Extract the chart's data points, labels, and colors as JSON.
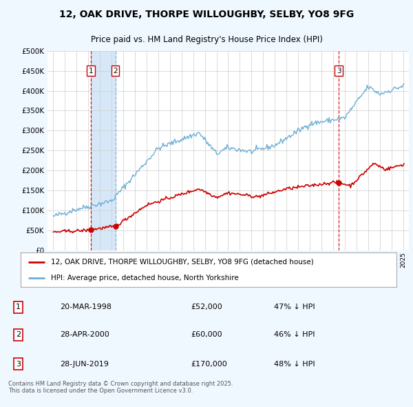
{
  "title": "12, OAK DRIVE, THORPE WILLOUGHBY, SELBY, YO8 9FG",
  "subtitle": "Price paid vs. HM Land Registry's House Price Index (HPI)",
  "legend_label_red": "12, OAK DRIVE, THORPE WILLOUGHBY, SELBY, YO8 9FG (detached house)",
  "legend_label_blue": "HPI: Average price, detached house, North Yorkshire",
  "transactions": [
    {
      "num": 1,
      "date": "20-MAR-1998",
      "price": 52000,
      "pct": "47% ↓ HPI",
      "year_x": 1998.21
    },
    {
      "num": 2,
      "date": "28-APR-2000",
      "price": 60000,
      "pct": "46% ↓ HPI",
      "year_x": 2000.32
    },
    {
      "num": 3,
      "date": "28-JUN-2019",
      "price": 170000,
      "pct": "48% ↓ HPI",
      "year_x": 2019.49
    }
  ],
  "footer": "Contains HM Land Registry data © Crown copyright and database right 2025.\nThis data is licensed under the Open Government Licence v3.0.",
  "ylim": [
    0,
    500000
  ],
  "yticks": [
    0,
    50000,
    100000,
    150000,
    200000,
    250000,
    300000,
    350000,
    400000,
    450000,
    500000
  ],
  "ytick_labels": [
    "£0",
    "£50K",
    "£100K",
    "£150K",
    "£200K",
    "£250K",
    "£300K",
    "£350K",
    "£400K",
    "£450K",
    "£500K"
  ],
  "xlim": [
    1994.5,
    2025.5
  ],
  "background_color": "#f0f8ff",
  "plot_bg_color": "#ffffff",
  "red_color": "#cc0000",
  "blue_color": "#6baed6",
  "shade_color": "#d6e8f7",
  "grid_color": "#cccccc",
  "vline_color": "#cc0000",
  "vline2_color": "#6699cc"
}
